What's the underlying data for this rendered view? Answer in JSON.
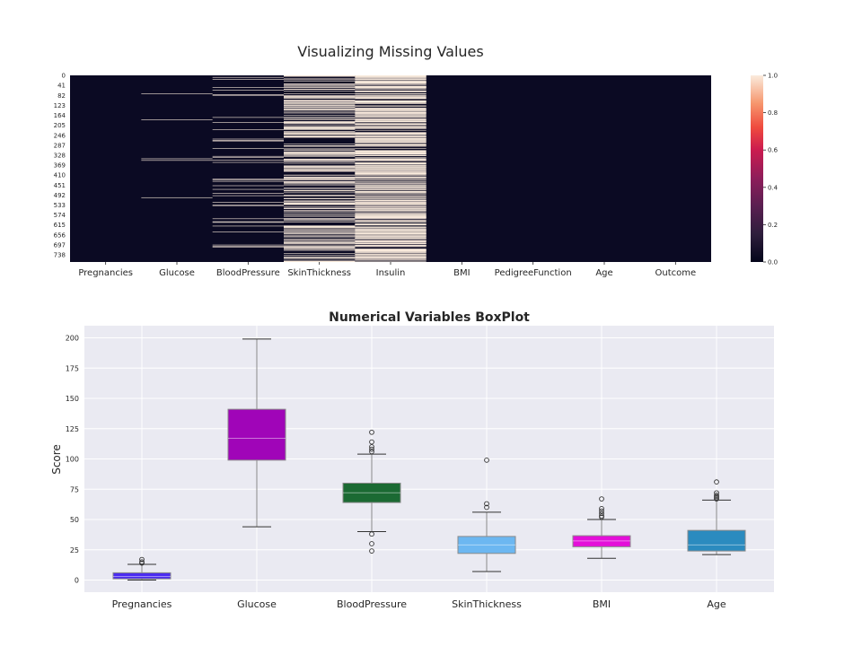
{
  "chart_data": [
    {
      "type": "heatmap",
      "title": "Visualizing Missing Values",
      "columns": [
        "Pregnancies",
        "Glucose",
        "BloodPressure",
        "SkinThickness",
        "Insulin",
        "BMI",
        "PedigreeFunction",
        "Age",
        "Outcome"
      ],
      "row_tick_labels": [
        "0",
        "41",
        "82",
        "123",
        "164",
        "205",
        "246",
        "287",
        "328",
        "369",
        "410",
        "451",
        "492",
        "533",
        "574",
        "615",
        "656",
        "697",
        "738"
      ],
      "n_rows": 768,
      "missing_rows": {
        "Pregnancies": [],
        "Glucose": [
          75,
          182,
          342,
          349,
          502
        ],
        "BloodPressure": [
          7,
          15,
          49,
          60,
          78,
          81,
          172,
          193,
          222,
          261,
          266,
          269,
          300,
          332,
          336,
          347,
          357,
          426,
          430,
          435,
          453,
          468,
          484,
          494,
          522,
          533,
          535,
          589,
          601,
          604,
          619,
          643,
          697,
          703,
          706
        ],
        "SkinThickness": "dense",
        "Insulin": "dense",
        "BMI": [],
        "PedigreeFunction": [],
        "Age": [],
        "Outcome": []
      },
      "colorbar": {
        "min": 0.0,
        "max": 1.0,
        "ticks": [
          "0.0",
          "0.2",
          "0.4",
          "0.6",
          "0.8",
          "1.0"
        ]
      },
      "colors": {
        "present": "#0b0a23",
        "missing": "#faebdd"
      }
    },
    {
      "type": "box",
      "title": "Numerical Variables BoxPlot",
      "ylabel": "Score",
      "ylim": [
        -10,
        210
      ],
      "yticks": [
        0,
        25,
        50,
        75,
        100,
        125,
        150,
        175,
        200
      ],
      "grid": true,
      "categories": [
        "Pregnancies",
        "Glucose",
        "BloodPressure",
        "SkinThickness",
        "BMI",
        "Age"
      ],
      "boxes": [
        {
          "name": "Pregnancies",
          "whisker_low": 0,
          "q1": 1,
          "median": 3,
          "q3": 6,
          "whisker_high": 13,
          "outliers": [
            14,
            15,
            17
          ],
          "color": "#4b2cf0"
        },
        {
          "name": "Glucose",
          "whisker_low": 44,
          "q1": 99,
          "median": 117,
          "q3": 141,
          "whisker_high": 199,
          "outliers": [],
          "color": "#a005b8"
        },
        {
          "name": "BloodPressure",
          "whisker_low": 40,
          "q1": 64,
          "median": 72,
          "q3": 80,
          "whisker_high": 104,
          "outliers": [
            24,
            30,
            38,
            106,
            108,
            110,
            114,
            122
          ],
          "color": "#1b6a33"
        },
        {
          "name": "SkinThickness",
          "whisker_low": 7,
          "q1": 22,
          "median": 29,
          "q3": 36,
          "whisker_high": 56,
          "outliers": [
            60,
            63,
            99
          ],
          "color": "#6cb7f1"
        },
        {
          "name": "BMI",
          "whisker_low": 18,
          "q1": 27.5,
          "median": 32.3,
          "q3": 36.6,
          "whisker_high": 50,
          "outliers": [
            52,
            53,
            55,
            57,
            59,
            67
          ],
          "color": "#e40fd9"
        },
        {
          "name": "Age",
          "whisker_low": 21,
          "q1": 24,
          "median": 29,
          "q3": 41,
          "whisker_high": 66,
          "outliers": [
            67,
            68,
            69,
            70,
            72,
            81
          ],
          "color": "#2b8bbf"
        }
      ]
    }
  ]
}
